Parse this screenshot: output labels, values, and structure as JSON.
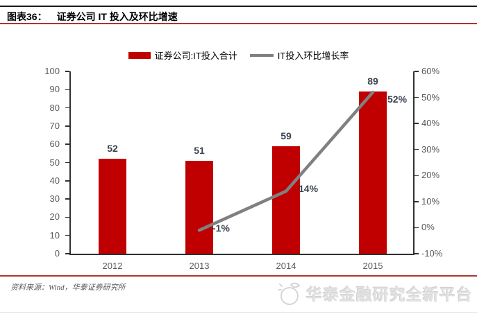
{
  "header": {
    "figure_label": "图表36：",
    "title": "证券公司 IT 投入及环比增速"
  },
  "chart_data": {
    "type": "bar+line combo",
    "categories": [
      "2012",
      "2013",
      "2014",
      "2015"
    ],
    "series": [
      {
        "name": "证券公司:IT投入合计",
        "type": "bar",
        "axis": "left",
        "color": "#c00000",
        "values": [
          52,
          51,
          59,
          89
        ],
        "data_labels": [
          "52",
          "51",
          "59",
          "89"
        ]
      },
      {
        "name": "IT投入环比增长率",
        "type": "line",
        "axis": "right",
        "color": "#808080",
        "values": [
          null,
          -1,
          14,
          52
        ],
        "data_labels": [
          "",
          "-1%",
          "14%",
          "52%"
        ]
      }
    ],
    "left_axis": {
      "min": 0,
      "max": 100,
      "step": 10,
      "tick_values": [
        0,
        10,
        20,
        30,
        40,
        50,
        60,
        70,
        80,
        90,
        100
      ],
      "tick_labels": [
        "0",
        "10",
        "20",
        "30",
        "40",
        "50",
        "60",
        "70",
        "80",
        "90",
        "100"
      ]
    },
    "right_axis": {
      "min": -10,
      "max": 60,
      "step": 10,
      "tick_values": [
        -10,
        0,
        10,
        20,
        30,
        40,
        50,
        60
      ],
      "tick_labels": [
        "-10%",
        "0%",
        "10%",
        "20%",
        "30%",
        "40%",
        "50%",
        "60%"
      ]
    },
    "grid": false,
    "legend_position": "top-center"
  },
  "footer": {
    "source": "资料来源：Wind，华泰证券研究所",
    "watermark": "华泰金融研究全新平台"
  },
  "colors": {
    "bar": "#c00000",
    "line": "#808080",
    "accent_rule": "#a8372d",
    "top_rule": "#1a1a1a",
    "axis_text": "#595959",
    "data_label": "#3b4450",
    "watermark_text": "#e2e2e2"
  }
}
